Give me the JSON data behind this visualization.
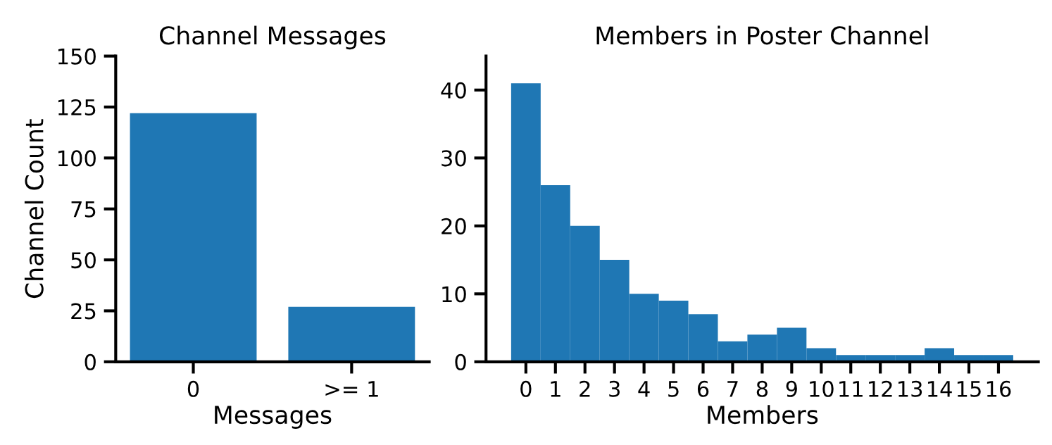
{
  "chart_data": [
    {
      "type": "bar",
      "title": "Channel Messages",
      "xlabel": "Messages",
      "ylabel": "Channel Count",
      "categories": [
        "0",
        ">= 1"
      ],
      "values": [
        122,
        27
      ],
      "color": "#1f77b4",
      "ylim": [
        0,
        150
      ],
      "yticks": [
        0,
        25,
        50,
        75,
        100,
        125,
        150
      ],
      "grid": false
    },
    {
      "type": "bar",
      "title": "Members in Poster Channel",
      "xlabel": "Members",
      "categories": [
        "0",
        "1",
        "2",
        "3",
        "4",
        "5",
        "6",
        "7",
        "8",
        "9",
        "10",
        "11",
        "12",
        "13",
        "14",
        "15",
        "16"
      ],
      "values": [
        41,
        26,
        20,
        15,
        10,
        9,
        7,
        3,
        4,
        5,
        2,
        1,
        1,
        1,
        2,
        1,
        1
      ],
      "color": "#1f77b4",
      "ylim": [
        0,
        45
      ],
      "yticks": [
        0,
        10,
        20,
        30,
        40
      ],
      "grid": false
    }
  ]
}
